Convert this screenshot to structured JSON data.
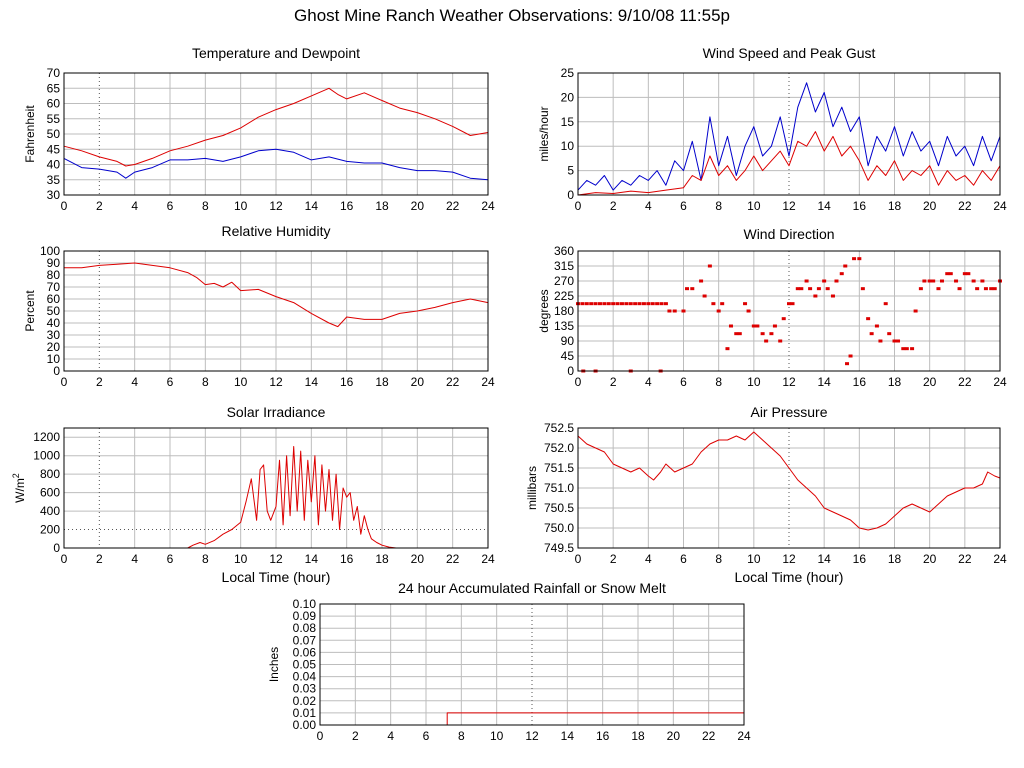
{
  "title": "Ghost Mine Ranch Weather Observations: 9/10/08 11:55p",
  "colors": {
    "red": "#dd0000",
    "blue": "#0000cc",
    "grid": "#bdbdbd",
    "major_grid": "#555555"
  },
  "chart_data": [
    {
      "id": "temp",
      "type": "line",
      "title": "Temperature and Dewpoint",
      "ylabel": "Fahrenheit",
      "xlabel": "",
      "ylim": [
        30,
        70
      ],
      "yticks": [
        30,
        35,
        40,
        45,
        50,
        55,
        60,
        65,
        70
      ],
      "ytick_labels": [
        "30",
        "35",
        "40",
        "45",
        "50",
        "55",
        "60",
        "65",
        "70"
      ],
      "xlim": [
        0,
        24
      ],
      "xticks": [
        0,
        2,
        4,
        6,
        8,
        10,
        12,
        14,
        16,
        18,
        20,
        22,
        24
      ],
      "series": [
        {
          "color": "#dd0000",
          "style": "line",
          "x": [
            0,
            1,
            2,
            3,
            3.5,
            4,
            5,
            6,
            7,
            8,
            9,
            10,
            11,
            12,
            13,
            14,
            15,
            15.5,
            16,
            17,
            18,
            19,
            20,
            21,
            22,
            23,
            24
          ],
          "y": [
            46,
            44.5,
            42.5,
            41,
            39.5,
            40,
            42,
            44.5,
            46,
            48,
            49.5,
            52,
            55.5,
            58,
            60,
            62.5,
            65,
            63,
            61.5,
            63.5,
            61,
            58.5,
            57,
            55,
            52.5,
            49.5,
            50.5
          ]
        },
        {
          "color": "#0000cc",
          "style": "line",
          "x": [
            0,
            1,
            2,
            3,
            3.5,
            4,
            5,
            6,
            7,
            8,
            9,
            10,
            11,
            12,
            13,
            14,
            15,
            16,
            17,
            18,
            19,
            20,
            21,
            22,
            23,
            24
          ],
          "y": [
            42,
            39,
            38.5,
            37.5,
            35.5,
            37.5,
            39,
            41.5,
            41.5,
            42,
            41,
            42.5,
            44.5,
            45,
            44,
            41.5,
            42.5,
            41,
            40.5,
            40.5,
            39,
            38,
            38,
            37.5,
            35.5,
            35
          ]
        }
      ]
    },
    {
      "id": "wind",
      "type": "line",
      "title": "Wind Speed and Peak Gust",
      "ylabel": "miles/hour",
      "xlabel": "",
      "ylim": [
        0,
        25
      ],
      "yticks": [
        0,
        5,
        10,
        15,
        20,
        25
      ],
      "ytick_labels": [
        "0",
        "5",
        "10",
        "15",
        "20",
        "25"
      ],
      "xlim": [
        0,
        24
      ],
      "xticks": [
        0,
        2,
        4,
        6,
        8,
        10,
        12,
        14,
        16,
        18,
        20,
        22,
        24
      ],
      "series": [
        {
          "color": "#0000cc",
          "style": "line",
          "x": [
            0,
            0.5,
            1,
            1.5,
            2,
            2.5,
            3,
            3.5,
            4,
            4.5,
            5,
            5.5,
            6,
            6.5,
            7,
            7.5,
            8,
            8.5,
            9,
            9.5,
            10,
            10.5,
            11,
            11.5,
            12,
            12.5,
            13,
            13.5,
            14,
            14.5,
            15,
            15.5,
            16,
            16.5,
            17,
            17.5,
            18,
            18.5,
            19,
            19.5,
            20,
            20.5,
            21,
            21.5,
            22,
            22.5,
            23,
            23.5,
            24
          ],
          "y": [
            1,
            3,
            2,
            4,
            1,
            3,
            2,
            4,
            3,
            5,
            2,
            7,
            5,
            11,
            3,
            16,
            6,
            12,
            4,
            10,
            14,
            8,
            10,
            16,
            8,
            18,
            23,
            17,
            21,
            14,
            18,
            13,
            16,
            6,
            12,
            9,
            14,
            8,
            13,
            9,
            11,
            6,
            12,
            8,
            10,
            6,
            12,
            7,
            12
          ]
        },
        {
          "color": "#dd0000",
          "style": "line",
          "x": [
            0,
            1,
            2,
            3,
            4,
            5,
            6,
            6.5,
            7,
            7.5,
            8,
            8.5,
            9,
            9.5,
            10,
            10.5,
            11,
            11.5,
            12,
            12.5,
            13,
            13.5,
            14,
            14.5,
            15,
            15.5,
            16,
            16.5,
            17,
            17.5,
            18,
            18.5,
            19,
            19.5,
            20,
            20.5,
            21,
            21.5,
            22,
            22.5,
            23,
            23.5,
            24
          ],
          "y": [
            0,
            0.5,
            0.3,
            0.8,
            0.5,
            1,
            1.5,
            4,
            3,
            8,
            4,
            6,
            3,
            5,
            8,
            5,
            7,
            9,
            6,
            11,
            10,
            13,
            9,
            12,
            8,
            10,
            7,
            3,
            6,
            4,
            7,
            3,
            5,
            4,
            6,
            2,
            5,
            3,
            4,
            2,
            5,
            3,
            6
          ]
        }
      ]
    },
    {
      "id": "rh",
      "type": "line",
      "title": "Relative Humidity",
      "ylabel": "Percent",
      "xlabel": "",
      "ylim": [
        0,
        100
      ],
      "yticks": [
        0,
        10,
        20,
        30,
        40,
        50,
        60,
        70,
        80,
        90,
        100
      ],
      "ytick_labels": [
        "0",
        "10",
        "20",
        "30",
        "40",
        "50",
        "60",
        "70",
        "80",
        "90",
        "100"
      ],
      "xlim": [
        0,
        24
      ],
      "xticks": [
        0,
        2,
        4,
        6,
        8,
        10,
        12,
        14,
        16,
        18,
        20,
        22,
        24
      ],
      "series": [
        {
          "color": "#dd0000",
          "style": "line",
          "x": [
            0,
            1,
            2,
            3,
            4,
            5,
            6,
            7,
            7.5,
            8,
            8.5,
            9,
            9.5,
            10,
            11,
            12,
            13,
            14,
            15,
            15.5,
            16,
            17,
            18,
            19,
            20,
            21,
            22,
            23,
            24
          ],
          "y": [
            86,
            86,
            88,
            89,
            90,
            88,
            86,
            82,
            78,
            72,
            73,
            70,
            74,
            67,
            68,
            62,
            57,
            48,
            40,
            37,
            45,
            43,
            43,
            48,
            50,
            53,
            57,
            60,
            57
          ]
        }
      ]
    },
    {
      "id": "wdir",
      "type": "scatter",
      "title": "Wind Direction",
      "ylabel": "degrees",
      "xlabel": "",
      "ylim": [
        0,
        360
      ],
      "yticks": [
        0,
        45,
        90,
        135,
        180,
        225,
        270,
        315,
        360
      ],
      "ytick_labels": [
        "0",
        "45",
        "90",
        "135",
        "180",
        "225",
        "270",
        "315",
        "360"
      ],
      "xlim": [
        0,
        24
      ],
      "xticks": [
        0,
        2,
        4,
        6,
        8,
        10,
        12,
        14,
        16,
        18,
        20,
        22,
        24
      ],
      "series": [
        {
          "color": "#dd0000",
          "style": "dots",
          "x": [
            0,
            0.25,
            0.5,
            0.75,
            1,
            1.25,
            1.5,
            1.75,
            2,
            2.25,
            2.5,
            2.75,
            3,
            3.25,
            3.5,
            3.75,
            4,
            4.25,
            4.5,
            4.75,
            5,
            0.3,
            1,
            3,
            4.7,
            5.2,
            5.5,
            6,
            6.2,
            6.5,
            7,
            7.2,
            7.5,
            7.7,
            8,
            8.2,
            8.5,
            8.7,
            9,
            9.2,
            9.5,
            9.7,
            10,
            10.2,
            10.5,
            10.7,
            11,
            11.2,
            11.5,
            11.7,
            12,
            12.2,
            12.5,
            12.7,
            13,
            13.2,
            13.5,
            13.7,
            14,
            14.2,
            14.5,
            14.7,
            15,
            15.2,
            15.3,
            15.5,
            15.7,
            16,
            16.2,
            16.5,
            16.7,
            17,
            17.2,
            17.5,
            17.7,
            18,
            18.2,
            18.5,
            18.7,
            19,
            19.2,
            19.5,
            19.7,
            20,
            20.2,
            20.5,
            20.7,
            21,
            21.2,
            21.5,
            21.7,
            22,
            22.2,
            22.5,
            22.7,
            23,
            23.2,
            23.5,
            23.7,
            24
          ],
          "y": [
            202,
            202,
            202,
            202,
            202,
            202,
            202,
            202,
            202,
            202,
            202,
            202,
            202,
            202,
            202,
            202,
            202,
            202,
            202,
            202,
            202,
            0,
            0,
            0,
            0,
            180,
            180,
            180,
            247,
            247,
            270,
            225,
            315,
            202,
            180,
            202,
            67,
            135,
            112,
            112,
            202,
            180,
            135,
            135,
            112,
            90,
            112,
            135,
            90,
            157,
            202,
            202,
            247,
            247,
            270,
            247,
            225,
            247,
            270,
            247,
            225,
            270,
            292,
            315,
            22,
            45,
            337,
            337,
            247,
            157,
            112,
            135,
            90,
            202,
            112,
            90,
            90,
            67,
            67,
            67,
            180,
            247,
            270,
            270,
            270,
            247,
            270,
            292,
            292,
            270,
            247,
            292,
            292,
            270,
            247,
            270,
            247,
            247,
            247,
            270
          ]
        }
      ]
    },
    {
      "id": "solar",
      "type": "line",
      "title": "Solar Irradiance",
      "ylabel": "W/m2",
      "xlabel": "Local Time (hour)",
      "ylim": [
        0,
        1300
      ],
      "yticks": [
        0,
        200,
        400,
        600,
        800,
        1000,
        1200
      ],
      "ytick_labels": [
        "0",
        "200",
        "400",
        "600",
        "800",
        "1000",
        "1200"
      ],
      "xlim": [
        0,
        24
      ],
      "xticks": [
        0,
        2,
        4,
        6,
        8,
        10,
        12,
        14,
        16,
        18,
        20,
        22,
        24
      ],
      "series": [
        {
          "color": "#dd0000",
          "style": "line",
          "x": [
            0,
            7,
            7.3,
            7.7,
            8,
            8.5,
            9,
            9.5,
            10,
            10.3,
            10.6,
            10.9,
            11.1,
            11.3,
            11.5,
            11.7,
            12,
            12.2,
            12.4,
            12.6,
            12.8,
            13,
            13.2,
            13.4,
            13.6,
            13.8,
            14,
            14.2,
            14.4,
            14.6,
            14.8,
            15,
            15.2,
            15.4,
            15.6,
            15.8,
            16,
            16.2,
            16.4,
            16.6,
            16.8,
            17,
            17.2,
            17.4,
            17.7,
            18,
            18.4,
            18.8,
            19.2,
            24
          ],
          "y": [
            0,
            0,
            30,
            60,
            40,
            80,
            150,
            200,
            280,
            500,
            750,
            300,
            850,
            900,
            400,
            300,
            450,
            950,
            250,
            1000,
            350,
            1100,
            400,
            1050,
            300,
            950,
            500,
            1000,
            250,
            900,
            400,
            850,
            300,
            800,
            200,
            650,
            550,
            600,
            300,
            450,
            150,
            350,
            200,
            100,
            60,
            30,
            10,
            0,
            0,
            0
          ]
        }
      ]
    },
    {
      "id": "press",
      "type": "line",
      "title": "Air Pressure",
      "ylabel": "millibars",
      "xlabel": "Local Time (hour)",
      "ylim": [
        749.5,
        752.5
      ],
      "yticks": [
        749.5,
        750.0,
        750.5,
        751.0,
        751.5,
        752.0,
        752.5
      ],
      "ytick_labels": [
        "749.5",
        "750.0",
        "750.5",
        "751.0",
        "751.5",
        "752.0",
        "752.5"
      ],
      "xlim": [
        0,
        24
      ],
      "xticks": [
        0,
        2,
        4,
        6,
        8,
        10,
        12,
        14,
        16,
        18,
        20,
        22,
        24
      ],
      "series": [
        {
          "color": "#dd0000",
          "style": "line",
          "x": [
            0,
            0.5,
            1,
            1.5,
            2,
            2.5,
            3,
            3.5,
            4,
            4.3,
            4.7,
            5,
            5.5,
            6,
            6.5,
            7,
            7.5,
            8,
            8.5,
            9,
            9.5,
            10,
            10.5,
            11,
            11.5,
            12,
            12.5,
            13,
            13.5,
            14,
            14.5,
            15,
            15.5,
            16,
            16.5,
            17,
            17.5,
            18,
            18.5,
            19,
            19.5,
            20,
            20.5,
            21,
            21.5,
            22,
            22.5,
            23,
            23.3,
            23.7,
            24
          ],
          "y": [
            752.3,
            752.1,
            752.0,
            751.9,
            751.6,
            751.5,
            751.4,
            751.5,
            751.3,
            751.2,
            751.4,
            751.6,
            751.4,
            751.5,
            751.6,
            751.9,
            752.1,
            752.2,
            752.2,
            752.3,
            752.2,
            752.4,
            752.2,
            752.0,
            751.8,
            751.5,
            751.2,
            751.0,
            750.8,
            750.5,
            750.4,
            750.3,
            750.2,
            750.0,
            749.95,
            750.0,
            750.1,
            750.3,
            750.5,
            750.6,
            750.5,
            750.4,
            750.6,
            750.8,
            750.9,
            751.0,
            751.0,
            751.1,
            751.4,
            751.3,
            751.25
          ]
        }
      ]
    },
    {
      "id": "rain",
      "type": "line",
      "title": "24 hour Accumulated Rainfall or Snow Melt",
      "ylabel": "Inches",
      "xlabel": "",
      "ylim": [
        0,
        0.1
      ],
      "yticks": [
        0,
        0.01,
        0.02,
        0.03,
        0.04,
        0.05,
        0.06,
        0.07,
        0.08,
        0.09,
        0.1
      ],
      "ytick_labels": [
        "0.00",
        "0.01",
        "0.02",
        "0.03",
        "0.04",
        "0.05",
        "0.06",
        "0.07",
        "0.08",
        "0.09",
        "0.10"
      ],
      "xlim": [
        0,
        24
      ],
      "xticks": [
        0,
        2,
        4,
        6,
        8,
        10,
        12,
        14,
        16,
        18,
        20,
        22,
        24
      ],
      "series": [
        {
          "color": "#dd0000",
          "style": "step",
          "x": [
            0,
            7.2,
            7.2,
            24
          ],
          "y": [
            0,
            0,
            0.01,
            0.01
          ]
        }
      ]
    }
  ]
}
